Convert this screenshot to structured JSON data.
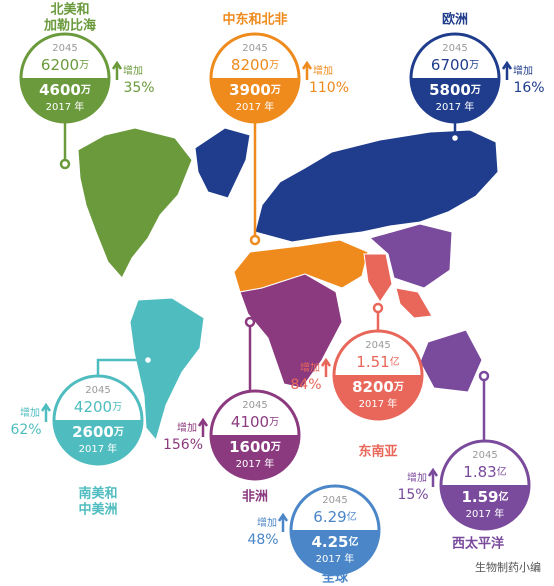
{
  "regions": [
    {
      "name": [
        "北美和",
        "加勒比海"
      ],
      "color": "#6a9a3c",
      "year_future": "2045",
      "future_value": "6200",
      "future_unit": "万",
      "current_value": "4600",
      "current_unit": "万",
      "year_current": "2017 年",
      "increase_label": "增加",
      "increase": "35%"
    },
    {
      "name": [
        "中东和北非"
      ],
      "color": "#ef8a1d",
      "year_future": "2045",
      "future_value": "8200",
      "future_unit": "万",
      "current_value": "3900",
      "current_unit": "万",
      "year_current": "2017 年",
      "increase_label": "增加",
      "increase": "110%"
    },
    {
      "name": [
        "欧洲"
      ],
      "color": "#1f3d8c",
      "year_future": "2045",
      "future_value": "6700",
      "future_unit": "万",
      "current_value": "5800",
      "current_unit": "万",
      "year_current": "2017 年",
      "increase_label": "增加",
      "increase": "16%"
    },
    {
      "name": [
        "南美和",
        "中美洲"
      ],
      "color": "#4fbcbf",
      "year_future": "2045",
      "future_value": "4200",
      "future_unit": "万",
      "current_value": "2600",
      "current_unit": "万",
      "year_current": "2017 年",
      "increase_label": "增加",
      "increase": "62%"
    },
    {
      "name": [
        "非洲"
      ],
      "color": "#8b3a7f",
      "year_future": "2045",
      "future_value": "4100",
      "future_unit": "万",
      "current_value": "1600",
      "current_unit": "万",
      "year_current": "2017 年",
      "increase_label": "增加",
      "increase": "156%"
    },
    {
      "name": [
        "东南亚"
      ],
      "color": "#e8675a",
      "year_future": "2045",
      "future_value": "1.51",
      "future_unit": "亿",
      "current_value": "8200",
      "current_unit": "万",
      "year_current": "2017 年",
      "increase_label": "增加",
      "increase": "84%"
    },
    {
      "name": [
        "西太平洋"
      ],
      "color": "#7a4a9c",
      "year_future": "2045",
      "future_value": "1.83",
      "future_unit": "亿",
      "current_value": "1.59",
      "current_unit": "亿",
      "year_current": "2017 年",
      "increase_label": "增加",
      "increase": "15%"
    },
    {
      "name": [
        "全球"
      ],
      "color": "#4a86c8",
      "year_future": "2045",
      "future_value": "6.29",
      "future_unit": "亿",
      "current_value": "4.25",
      "current_unit": "亿",
      "year_current": "2017 年",
      "increase_label": "增加",
      "increase": "48%"
    }
  ],
  "watermark": "生物制药小编"
}
